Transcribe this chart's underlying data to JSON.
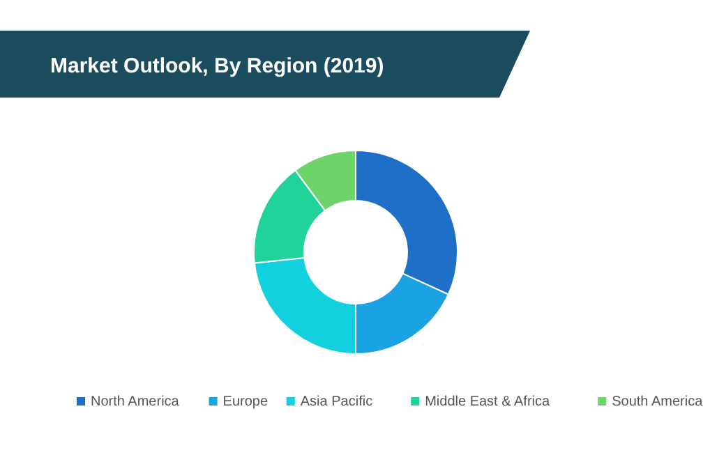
{
  "chart_data": {
    "type": "donut",
    "title": "Market Outlook, By Region (2019)",
    "categories": [
      "North America",
      "Europe",
      "Asia Pacific",
      "Middle East & Africa",
      "South America"
    ],
    "values": [
      31.8,
      18.2,
      23.3,
      16.6,
      10.1
    ],
    "colors": [
      "#1e6fc8",
      "#1aa3e2",
      "#12d0de",
      "#1fd39a",
      "#6ed46a"
    ],
    "legend": "bottom"
  }
}
